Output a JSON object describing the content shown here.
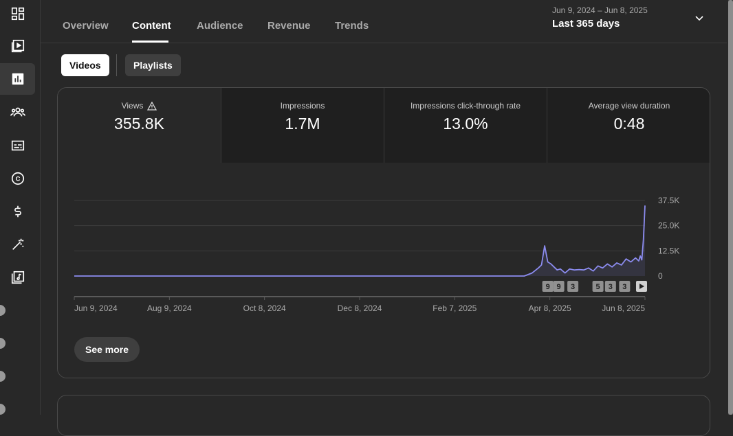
{
  "sidebar": {
    "icons": [
      "dashboard-icon",
      "content-icon",
      "analytics-icon",
      "community-icon",
      "subtitles-icon",
      "copyright-icon",
      "earn-icon",
      "customization-icon",
      "audio-library-icon"
    ],
    "active": "analytics-icon"
  },
  "tabs": [
    "Overview",
    "Content",
    "Audience",
    "Revenue",
    "Trends"
  ],
  "active_tab": "Content",
  "date_range": {
    "range": "Jun 9, 2024 – Jun 8, 2025",
    "label": "Last 365 days"
  },
  "content_type": {
    "videos": "Videos",
    "playlists": "Playlists",
    "selected": "Videos"
  },
  "metrics": [
    {
      "label": "Views",
      "value": "355.8K",
      "warning": true
    },
    {
      "label": "Impressions",
      "value": "1.7M"
    },
    {
      "label": "Impressions click-through rate",
      "value": "13.0%"
    },
    {
      "label": "Average view duration",
      "value": "0:48"
    }
  ],
  "see_more": "See more",
  "chart_data": {
    "type": "line",
    "x_tick_labels": [
      "Jun 9, 2024",
      "Aug 9, 2024",
      "Oct 8, 2024",
      "Dec 8, 2024",
      "Feb 7, 2025",
      "Apr 8, 2025",
      "Jun 8, 2025"
    ],
    "y_tick_labels": [
      "0",
      "12.5K",
      "25.0K",
      "37.5K"
    ],
    "ylim": [
      0,
      37500
    ],
    "grid": true,
    "series": [
      {
        "color": "#8c8cf0",
        "points": [
          [
            "2024-06-09",
            0
          ],
          [
            "2025-03-23",
            0
          ],
          [
            "2025-03-28",
            1500
          ],
          [
            "2025-04-01",
            4000
          ],
          [
            "2025-04-03",
            5500
          ],
          [
            "2025-04-05",
            15000
          ],
          [
            "2025-04-07",
            7000
          ],
          [
            "2025-04-09",
            6000
          ],
          [
            "2025-04-11",
            4500
          ],
          [
            "2025-04-13",
            3000
          ],
          [
            "2025-04-15",
            3500
          ],
          [
            "2025-04-18",
            1500
          ],
          [
            "2025-04-21",
            3500
          ],
          [
            "2025-04-24",
            3000
          ],
          [
            "2025-04-27",
            3200
          ],
          [
            "2025-04-30",
            3000
          ],
          [
            "2025-05-03",
            4000
          ],
          [
            "2025-05-06",
            2500
          ],
          [
            "2025-05-09",
            5000
          ],
          [
            "2025-05-12",
            4000
          ],
          [
            "2025-05-15",
            6000
          ],
          [
            "2025-05-18",
            4500
          ],
          [
            "2025-05-21",
            6500
          ],
          [
            "2025-05-24",
            5500
          ],
          [
            "2025-05-27",
            8500
          ],
          [
            "2025-05-30",
            7000
          ],
          [
            "2025-06-02",
            9000
          ],
          [
            "2025-06-04",
            7500
          ],
          [
            "2025-06-05",
            10000
          ],
          [
            "2025-06-06",
            8000
          ],
          [
            "2025-06-07",
            18000
          ],
          [
            "2025-06-08",
            35000
          ]
        ]
      }
    ],
    "markers": [
      {
        "label": "9",
        "date": "2025-04-07"
      },
      {
        "label": "9",
        "date": "2025-04-14"
      },
      {
        "label": "3",
        "date": "2025-04-23"
      },
      {
        "label": "5",
        "date": "2025-05-09"
      },
      {
        "label": "3",
        "date": "2025-05-17"
      },
      {
        "label": "3",
        "date": "2025-05-26"
      }
    ]
  }
}
